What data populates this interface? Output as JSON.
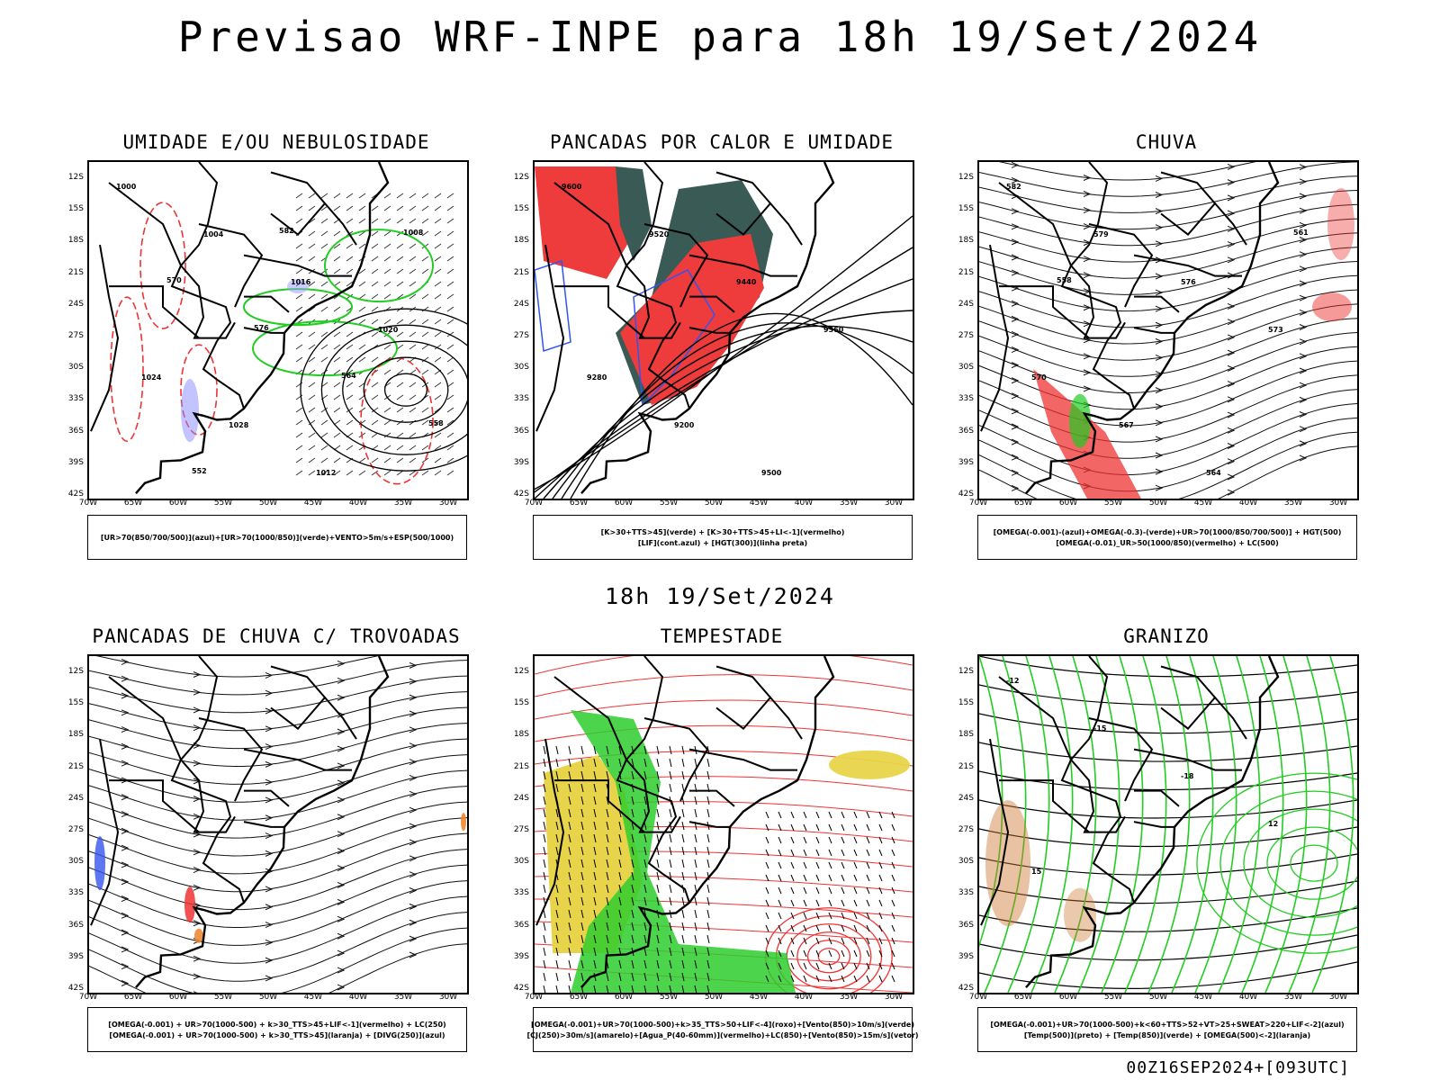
{
  "title": "Previsao WRF-INPE  para 18h 19/Set/2024",
  "subtitle": "18h 19/Set/2024",
  "run_stamp": "00Z16SEP2024+[093UTC]",
  "lat_labels": [
    "12S",
    "15S",
    "18S",
    "21S",
    "24S",
    "27S",
    "30S",
    "33S",
    "36S",
    "39S",
    "42S"
  ],
  "lon_labels": [
    "70W",
    "65W",
    "60W",
    "55W",
    "50W",
    "45W",
    "40W",
    "35W",
    "30W"
  ],
  "panels": [
    {
      "title": "UMIDADE E/OU NEBULOSIDADE",
      "legend": [
        "[UR>70(850/700/500)](azul)+[UR>70(1000/850)](verde)+VENTO>5m/s+ESP(500/1000)"
      ],
      "contour_labels": [
        "1000",
        "1004",
        "1016",
        "1020",
        "1024",
        "1028",
        "1012",
        "1008",
        "570",
        "576",
        "564",
        "558",
        "552",
        "582"
      ]
    },
    {
      "title": "PANCADAS POR CALOR E UMIDADE",
      "legend": [
        "[K>30+TTS>45](verde) + [K>30+TTS>45+LI<-1](vermelho)",
        "[LIF](cont.azul) + [HGT(300)](linha preta)"
      ],
      "contour_labels": [
        "9600",
        "9520",
        "9440",
        "9360",
        "9280",
        "9200",
        "9500"
      ]
    },
    {
      "title": "CHUVA",
      "legend": [
        "[OMEGA(-0.001)-(azul)+OMEGA(-0.3)-(verde)+UR>70(1000/850/700/500)] + HGT(500)",
        "[OMEGA(-0.01)_UR>50(1000/850)(vermelho) + LC(500)"
      ],
      "contour_labels": [
        "582",
        "579",
        "576",
        "573",
        "570",
        "567",
        "564",
        "561",
        "558"
      ]
    },
    {
      "title": "PANCADAS DE CHUVA C/ TROVOADAS",
      "legend": [
        "[OMEGA(-0.001) + UR>70(1000-500) + k>30_TTS>45+LIF<-1](vermelho) + LC(250)",
        "[OMEGA(-0.001) + UR>70(1000-500) + k>30_TTS>45](laranja) + [DIVG(250)](azul)"
      ],
      "contour_labels": []
    },
    {
      "title": "TEMPESTADE",
      "legend": [
        "[OMEGA(-0.001)+UR>70(1000-500)+k>35_TTS>50+LIF<-4](roxo)+[Vento(850)>10m/s](verde)",
        "[CJ(250)>30m/s](amarelo)+[Agua_P(40-60mm)](vermelho)+LC(850)+[Vento(850)>15m/s](vetor)"
      ],
      "contour_labels": []
    },
    {
      "title": "GRANIZO",
      "legend": [
        "[OMEGA(-0.001)+UR>70(1000-500)+k<60+TTS>52+VT>25+SWEAT>220+LIF<-2](azul)",
        "[Temp(500)](preto) + [Temp(850)](verde) + [OMEGA(500)<-2](laranja)"
      ],
      "contour_labels": [
        "-12",
        "-15",
        "-18",
        "12",
        "15"
      ]
    }
  ]
}
